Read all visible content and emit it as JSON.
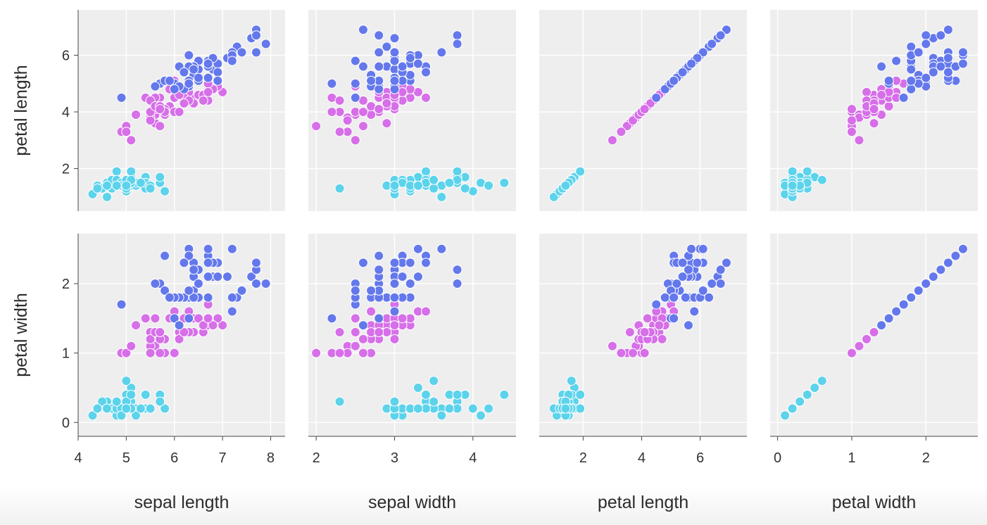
{
  "chart_data": {
    "type": "scatter",
    "layout": "scatter-matrix",
    "columns": [
      "sepal length",
      "sepal width",
      "petal length",
      "petal width"
    ],
    "rows": [
      "petal length",
      "petal width"
    ],
    "colors": {
      "setosa": "#5cd3eb",
      "versicolor": "#d66fe8",
      "virginica": "#6478ec"
    },
    "legend": "none",
    "grid": true,
    "axes": {
      "x": {
        "sepal length": {
          "domain": [
            4.0,
            8.3
          ],
          "ticks": [
            4,
            5,
            6,
            7,
            8
          ]
        },
        "sepal width": {
          "domain": [
            1.9,
            4.55
          ],
          "ticks": [
            2,
            3,
            4
          ]
        },
        "petal length": {
          "domain": [
            0.5,
            7.6
          ],
          "ticks": [
            2,
            4,
            6
          ]
        },
        "petal width": {
          "domain": [
            -0.1,
            2.7
          ],
          "ticks": [
            0,
            1,
            2
          ]
        }
      },
      "y": {
        "petal length": {
          "domain": [
            0.5,
            7.6
          ],
          "ticks": [
            2,
            4,
            6
          ]
        },
        "petal width": {
          "domain": [
            -0.2,
            2.72
          ],
          "ticks": [
            0,
            1,
            2
          ]
        }
      }
    },
    "species_data": {
      "setosa": {
        "sepal_length": [
          5.1,
          4.9,
          4.7,
          4.6,
          5.0,
          5.4,
          4.6,
          5.0,
          4.4,
          4.9,
          5.4,
          4.8,
          4.8,
          4.3,
          5.8,
          5.7,
          5.4,
          5.1,
          5.7,
          5.1,
          5.4,
          5.1,
          4.6,
          5.1,
          4.8,
          5.0,
          5.0,
          5.2,
          5.2,
          4.7,
          4.8,
          5.4,
          5.2,
          5.5,
          4.9,
          5.0,
          5.5,
          4.9,
          4.4,
          5.1,
          5.0,
          4.5,
          4.4,
          5.0,
          5.1,
          4.8,
          5.1,
          4.6,
          5.3,
          5.0
        ],
        "sepal_width": [
          3.5,
          3.0,
          3.2,
          3.1,
          3.6,
          3.9,
          3.4,
          3.4,
          2.9,
          3.1,
          3.7,
          3.4,
          3.0,
          3.0,
          4.0,
          4.4,
          3.9,
          3.5,
          3.8,
          3.8,
          3.4,
          3.7,
          3.6,
          3.3,
          3.4,
          3.0,
          3.4,
          3.5,
          3.4,
          3.2,
          3.1,
          3.4,
          4.1,
          4.2,
          3.1,
          3.2,
          3.5,
          3.6,
          3.0,
          3.4,
          3.5,
          2.3,
          3.2,
          3.5,
          3.8,
          3.0,
          3.8,
          3.2,
          3.7,
          3.3
        ],
        "petal_length": [
          1.4,
          1.4,
          1.3,
          1.5,
          1.4,
          1.7,
          1.4,
          1.5,
          1.4,
          1.5,
          1.5,
          1.6,
          1.4,
          1.1,
          1.2,
          1.5,
          1.3,
          1.4,
          1.7,
          1.5,
          1.7,
          1.5,
          1.0,
          1.7,
          1.9,
          1.6,
          1.6,
          1.5,
          1.4,
          1.6,
          1.6,
          1.5,
          1.5,
          1.4,
          1.5,
          1.2,
          1.3,
          1.4,
          1.3,
          1.5,
          1.3,
          1.3,
          1.3,
          1.6,
          1.9,
          1.4,
          1.6,
          1.4,
          1.5,
          1.4
        ],
        "petal_width": [
          0.2,
          0.2,
          0.2,
          0.2,
          0.2,
          0.4,
          0.3,
          0.2,
          0.2,
          0.1,
          0.2,
          0.2,
          0.1,
          0.1,
          0.2,
          0.4,
          0.4,
          0.3,
          0.3,
          0.3,
          0.2,
          0.4,
          0.2,
          0.5,
          0.2,
          0.2,
          0.4,
          0.2,
          0.2,
          0.2,
          0.2,
          0.4,
          0.1,
          0.2,
          0.2,
          0.2,
          0.2,
          0.1,
          0.2,
          0.2,
          0.3,
          0.3,
          0.2,
          0.6,
          0.4,
          0.3,
          0.2,
          0.2,
          0.2,
          0.2
        ]
      },
      "versicolor": {
        "sepal_length": [
          7.0,
          6.4,
          6.9,
          5.5,
          6.5,
          5.7,
          6.3,
          4.9,
          6.6,
          5.2,
          5.0,
          5.9,
          6.0,
          6.1,
          5.6,
          6.7,
          5.6,
          5.8,
          6.2,
          5.6,
          5.9,
          6.1,
          6.3,
          6.1,
          6.4,
          6.6,
          6.8,
          6.7,
          6.0,
          5.7,
          5.5,
          5.5,
          5.8,
          6.0,
          5.4,
          6.0,
          6.7,
          6.3,
          5.6,
          5.5,
          5.5,
          6.1,
          5.8,
          5.0,
          5.6,
          5.7,
          5.7,
          6.2,
          5.1,
          5.7
        ],
        "sepal_width": [
          3.2,
          3.2,
          3.1,
          2.3,
          2.8,
          2.8,
          3.3,
          2.4,
          2.9,
          2.7,
          2.0,
          3.0,
          2.2,
          2.9,
          2.9,
          3.1,
          3.0,
          2.7,
          2.2,
          2.5,
          3.2,
          2.8,
          2.5,
          2.8,
          2.9,
          3.0,
          2.8,
          3.0,
          2.9,
          2.6,
          2.4,
          2.4,
          2.7,
          2.7,
          3.0,
          3.4,
          3.1,
          2.3,
          3.0,
          2.5,
          2.6,
          3.0,
          2.6,
          2.3,
          2.7,
          3.0,
          2.9,
          2.9,
          2.5,
          2.8
        ],
        "petal_length": [
          4.7,
          4.5,
          4.9,
          4.0,
          4.6,
          4.5,
          4.7,
          3.3,
          4.6,
          3.9,
          3.5,
          4.2,
          4.0,
          4.7,
          3.6,
          4.4,
          4.5,
          4.1,
          4.5,
          3.9,
          4.8,
          4.0,
          4.9,
          4.7,
          4.3,
          4.4,
          4.8,
          5.0,
          4.5,
          3.5,
          3.8,
          3.7,
          3.9,
          5.1,
          4.5,
          4.5,
          4.7,
          4.4,
          4.1,
          4.0,
          4.4,
          4.6,
          4.0,
          3.3,
          4.2,
          4.2,
          4.2,
          4.3,
          3.0,
          4.1
        ],
        "petal_width": [
          1.4,
          1.5,
          1.5,
          1.3,
          1.5,
          1.3,
          1.6,
          1.0,
          1.3,
          1.4,
          1.0,
          1.5,
          1.0,
          1.4,
          1.3,
          1.4,
          1.5,
          1.0,
          1.5,
          1.1,
          1.8,
          1.3,
          1.5,
          1.2,
          1.3,
          1.4,
          1.4,
          1.7,
          1.5,
          1.0,
          1.1,
          1.0,
          1.2,
          1.6,
          1.5,
          1.6,
          1.5,
          1.3,
          1.3,
          1.3,
          1.2,
          1.4,
          1.2,
          1.0,
          1.3,
          1.2,
          1.3,
          1.3,
          1.1,
          1.3
        ]
      },
      "virginica": {
        "sepal_length": [
          6.3,
          5.8,
          7.1,
          6.3,
          6.5,
          7.6,
          4.9,
          7.3,
          6.7,
          7.2,
          6.5,
          6.4,
          6.8,
          5.7,
          5.8,
          6.4,
          6.5,
          7.7,
          7.7,
          6.0,
          6.9,
          5.6,
          7.7,
          6.3,
          6.7,
          7.2,
          6.2,
          6.1,
          6.4,
          7.2,
          7.4,
          7.9,
          6.4,
          6.3,
          6.1,
          7.7,
          6.3,
          6.4,
          6.0,
          6.9,
          6.7,
          6.9,
          5.8,
          6.8,
          6.7,
          6.7,
          6.3,
          6.5,
          6.2,
          5.9
        ],
        "sepal_width": [
          3.3,
          2.7,
          3.0,
          2.9,
          3.0,
          3.0,
          2.5,
          2.9,
          2.5,
          3.6,
          3.2,
          2.7,
          3.0,
          2.5,
          2.8,
          3.2,
          3.0,
          3.8,
          2.6,
          2.2,
          3.2,
          2.8,
          2.8,
          2.7,
          3.3,
          3.2,
          2.8,
          3.0,
          2.8,
          3.0,
          2.8,
          3.8,
          2.8,
          2.8,
          2.6,
          3.0,
          3.4,
          3.1,
          3.0,
          3.1,
          3.1,
          3.1,
          2.7,
          3.2,
          3.3,
          3.0,
          2.5,
          3.0,
          3.4,
          3.0
        ],
        "petal_length": [
          6.0,
          5.1,
          5.9,
          5.6,
          5.8,
          6.6,
          4.5,
          6.3,
          5.8,
          6.1,
          5.1,
          5.3,
          5.5,
          5.0,
          5.1,
          5.3,
          5.5,
          6.7,
          6.9,
          5.0,
          5.7,
          4.9,
          6.7,
          4.9,
          5.7,
          6.0,
          4.8,
          4.9,
          5.6,
          5.8,
          6.1,
          6.4,
          5.6,
          5.1,
          5.6,
          6.1,
          5.6,
          5.5,
          4.8,
          5.4,
          5.6,
          5.1,
          5.1,
          5.9,
          5.7,
          5.2,
          5.0,
          5.2,
          5.4,
          5.1
        ],
        "petal_width": [
          2.5,
          1.9,
          2.1,
          1.8,
          2.2,
          2.1,
          1.7,
          1.8,
          1.8,
          2.5,
          2.0,
          1.9,
          2.1,
          2.0,
          2.4,
          2.3,
          1.8,
          2.2,
          2.3,
          1.5,
          2.3,
          2.0,
          2.0,
          1.8,
          2.1,
          1.8,
          1.8,
          1.8,
          2.1,
          1.6,
          1.9,
          2.0,
          2.2,
          1.5,
          1.4,
          2.3,
          2.4,
          1.8,
          1.8,
          2.1,
          2.4,
          2.3,
          1.9,
          2.3,
          2.5,
          2.3,
          1.9,
          2.0,
          2.3,
          1.8
        ]
      }
    }
  }
}
